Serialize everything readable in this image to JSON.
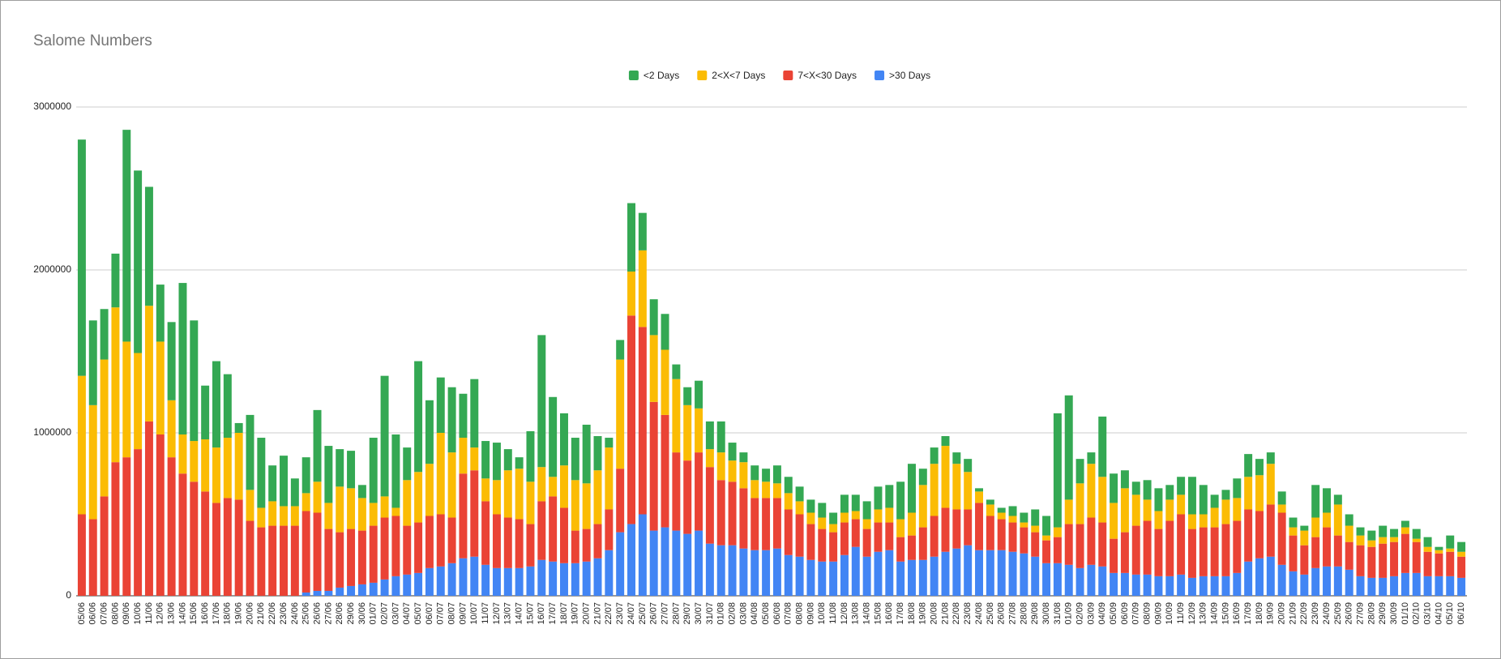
{
  "chart_data": {
    "type": "stacked_bar",
    "title": "Salome Numbers",
    "categories": [
      "05/06",
      "06/06",
      "07/06",
      "08/06",
      "09/06",
      "10/06",
      "11/06",
      "12/06",
      "13/06",
      "14/06",
      "15/06",
      "16/06",
      "17/06",
      "18/06",
      "19/06",
      "20/06",
      "21/06",
      "22/06",
      "23/06",
      "24/06",
      "25/06",
      "26/06",
      "27/06",
      "28/06",
      "29/06",
      "30/06",
      "01/07",
      "02/07",
      "03/07",
      "04/07",
      "05/07",
      "06/07",
      "07/07",
      "08/07",
      "09/07",
      "10/07",
      "11/07",
      "12/07",
      "13/07",
      "14/07",
      "15/07",
      "16/07",
      "17/07",
      "18/07",
      "19/07",
      "20/07",
      "21/07",
      "22/07",
      "23/07",
      "24/07",
      "25/07",
      "26/07",
      "27/07",
      "28/07",
      "29/07",
      "30/07",
      "31/07",
      "01/08",
      "02/08",
      "03/08",
      "04/08",
      "05/08",
      "06/08",
      "07/08",
      "08/08",
      "09/08",
      "10/08",
      "11/08",
      "12/08",
      "13/08",
      "14/08",
      "15/08",
      "16/08",
      "17/08",
      "18/08",
      "19/08",
      "20/08",
      "21/08",
      "22/08",
      "23/08",
      "24/08",
      "25/08",
      "26/08",
      "27/08",
      "28/08",
      "29/08",
      "30/08",
      "31/08",
      "01/09",
      "02/09",
      "03/09",
      "04/09",
      "05/09",
      "06/09",
      "07/09",
      "08/09",
      "09/09",
      "10/09",
      "11/09",
      "12/09",
      "13/09",
      "14/09",
      "15/09",
      "16/09",
      "17/09",
      "18/09",
      "19/09",
      "20/09",
      "21/09",
      "22/09",
      "23/09",
      "24/09",
      "25/09",
      "26/09",
      "27/09",
      "28/09",
      "29/09",
      "30/09",
      "01/10",
      "02/10",
      "03/10",
      "04/10",
      "05/10",
      "06/10"
    ],
    "series": [
      {
        "name": "<2 Days",
        "color": "#34a853",
        "values": [
          1450000,
          520000,
          310000,
          330000,
          1300000,
          1120000,
          730000,
          350000,
          480000,
          930000,
          740000,
          330000,
          530000,
          390000,
          60000,
          460000,
          430000,
          220000,
          310000,
          170000,
          220000,
          440000,
          350000,
          230000,
          230000,
          80000,
          400000,
          740000,
          450000,
          200000,
          680000,
          390000,
          340000,
          400000,
          270000,
          420000,
          230000,
          230000,
          130000,
          70000,
          310000,
          810000,
          490000,
          320000,
          260000,
          360000,
          210000,
          60000,
          120000,
          420000,
          230000,
          220000,
          220000,
          90000,
          110000,
          170000,
          170000,
          190000,
          110000,
          60000,
          90000,
          80000,
          110000,
          100000,
          90000,
          80000,
          90000,
          70000,
          110000,
          100000,
          110000,
          140000,
          140000,
          230000,
          300000,
          100000,
          100000,
          60000,
          70000,
          80000,
          20000,
          30000,
          30000,
          60000,
          60000,
          100000,
          120000,
          700000,
          640000,
          150000,
          70000,
          370000,
          180000,
          110000,
          80000,
          120000,
          140000,
          90000,
          110000,
          230000,
          180000,
          80000,
          60000,
          120000,
          140000,
          100000,
          70000,
          80000,
          60000,
          30000,
          200000,
          150000,
          60000,
          70000,
          50000,
          60000,
          70000,
          50000,
          40000,
          60000,
          60000,
          20000,
          80000,
          60000
        ]
      },
      {
        "name": "2<X<7 Days",
        "color": "#fbbc04",
        "values": [
          850000,
          700000,
          840000,
          950000,
          710000,
          590000,
          710000,
          570000,
          350000,
          240000,
          250000,
          320000,
          340000,
          370000,
          410000,
          190000,
          120000,
          150000,
          120000,
          120000,
          110000,
          190000,
          160000,
          280000,
          250000,
          200000,
          140000,
          130000,
          50000,
          280000,
          310000,
          320000,
          500000,
          400000,
          220000,
          140000,
          140000,
          210000,
          290000,
          310000,
          260000,
          210000,
          120000,
          260000,
          310000,
          280000,
          330000,
          380000,
          670000,
          270000,
          470000,
          410000,
          400000,
          450000,
          340000,
          270000,
          110000,
          170000,
          130000,
          160000,
          110000,
          100000,
          90000,
          100000,
          80000,
          70000,
          70000,
          50000,
          60000,
          50000,
          60000,
          80000,
          90000,
          110000,
          140000,
          260000,
          320000,
          380000,
          280000,
          230000,
          70000,
          70000,
          40000,
          40000,
          30000,
          40000,
          30000,
          60000,
          150000,
          250000,
          330000,
          280000,
          220000,
          270000,
          190000,
          130000,
          110000,
          130000,
          120000,
          90000,
          80000,
          120000,
          150000,
          140000,
          200000,
          220000,
          250000,
          50000,
          50000,
          90000,
          120000,
          90000,
          190000,
          100000,
          60000,
          40000,
          40000,
          30000,
          40000,
          20000,
          30000,
          20000,
          20000,
          30000
        ]
      },
      {
        "name": "7<X<30 Days",
        "color": "#ea4335",
        "values": [
          500000,
          470000,
          610000,
          820000,
          850000,
          900000,
          1070000,
          990000,
          850000,
          750000,
          700000,
          640000,
          570000,
          600000,
          590000,
          460000,
          420000,
          430000,
          430000,
          430000,
          500000,
          480000,
          380000,
          340000,
          350000,
          330000,
          350000,
          380000,
          370000,
          300000,
          310000,
          320000,
          320000,
          280000,
          520000,
          530000,
          390000,
          330000,
          310000,
          300000,
          260000,
          360000,
          400000,
          340000,
          200000,
          200000,
          210000,
          250000,
          390000,
          1280000,
          1150000,
          790000,
          690000,
          480000,
          450000,
          480000,
          470000,
          400000,
          390000,
          370000,
          320000,
          320000,
          310000,
          280000,
          260000,
          220000,
          200000,
          180000,
          200000,
          170000,
          170000,
          180000,
          170000,
          150000,
          150000,
          200000,
          250000,
          270000,
          240000,
          220000,
          290000,
          210000,
          190000,
          180000,
          160000,
          150000,
          140000,
          160000,
          250000,
          270000,
          290000,
          270000,
          210000,
          250000,
          300000,
          330000,
          290000,
          340000,
          370000,
          300000,
          300000,
          300000,
          320000,
          320000,
          320000,
          290000,
          320000,
          320000,
          220000,
          180000,
          190000,
          240000,
          190000,
          170000,
          190000,
          190000,
          210000,
          210000,
          240000,
          190000,
          150000,
          140000,
          150000,
          130000
        ]
      },
      {
        "name": ">30 Days",
        "color": "#4285f4",
        "values": [
          0,
          0,
          0,
          0,
          0,
          0,
          0,
          0,
          0,
          0,
          0,
          0,
          0,
          0,
          0,
          0,
          0,
          0,
          0,
          0,
          20000,
          30000,
          30000,
          50000,
          60000,
          70000,
          80000,
          100000,
          120000,
          130000,
          140000,
          170000,
          180000,
          200000,
          230000,
          240000,
          190000,
          170000,
          170000,
          170000,
          180000,
          220000,
          210000,
          200000,
          200000,
          210000,
          230000,
          280000,
          390000,
          440000,
          500000,
          400000,
          420000,
          400000,
          380000,
          400000,
          320000,
          310000,
          310000,
          290000,
          280000,
          280000,
          290000,
          250000,
          240000,
          220000,
          210000,
          210000,
          250000,
          300000,
          240000,
          270000,
          280000,
          210000,
          220000,
          220000,
          240000,
          270000,
          290000,
          310000,
          280000,
          280000,
          280000,
          270000,
          260000,
          240000,
          200000,
          200000,
          190000,
          170000,
          190000,
          180000,
          140000,
          140000,
          130000,
          130000,
          120000,
          120000,
          130000,
          110000,
          120000,
          120000,
          120000,
          140000,
          210000,
          230000,
          240000,
          190000,
          150000,
          130000,
          170000,
          180000,
          180000,
          160000,
          120000,
          110000,
          110000,
          120000,
          140000,
          140000,
          120000,
          120000,
          120000,
          110000
        ]
      }
    ],
    "ylim": [
      0,
      3000000
    ],
    "yticks": [
      0,
      1000000,
      2000000,
      3000000
    ],
    "grid": true,
    "legend": "top"
  }
}
